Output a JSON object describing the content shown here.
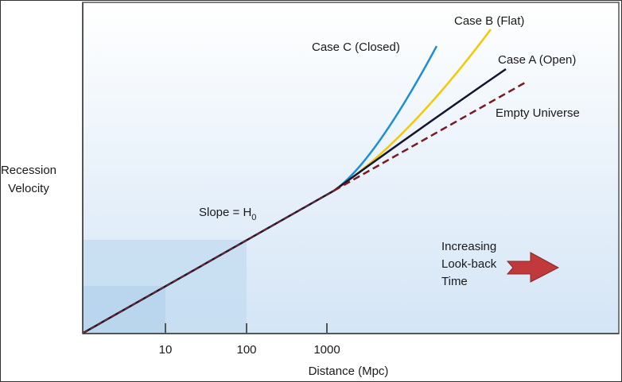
{
  "diagram": {
    "y_axis_label_lines": [
      "Recession",
      "Velocity"
    ],
    "x_axis_label": "Distance (Mpc)",
    "x_ticks": [
      "10",
      "100",
      "1000"
    ],
    "slope_label": "Slope = H",
    "slope_subscript": "0",
    "curves": [
      {
        "label": "Case C (Closed)",
        "color": "#1e8fd6",
        "style": "solid"
      },
      {
        "label": "Case B (Flat)",
        "color": "#f5c800",
        "style": "solid"
      },
      {
        "label": "Case A (Open)",
        "color": "#151530",
        "style": "solid"
      },
      {
        "label": "Empty Universe",
        "color": "#7a1a22",
        "style": "dashed"
      }
    ],
    "arrow_label_lines": [
      "Increasing",
      "Look-back",
      "Time"
    ],
    "arrow_color": "#c0393b"
  }
}
